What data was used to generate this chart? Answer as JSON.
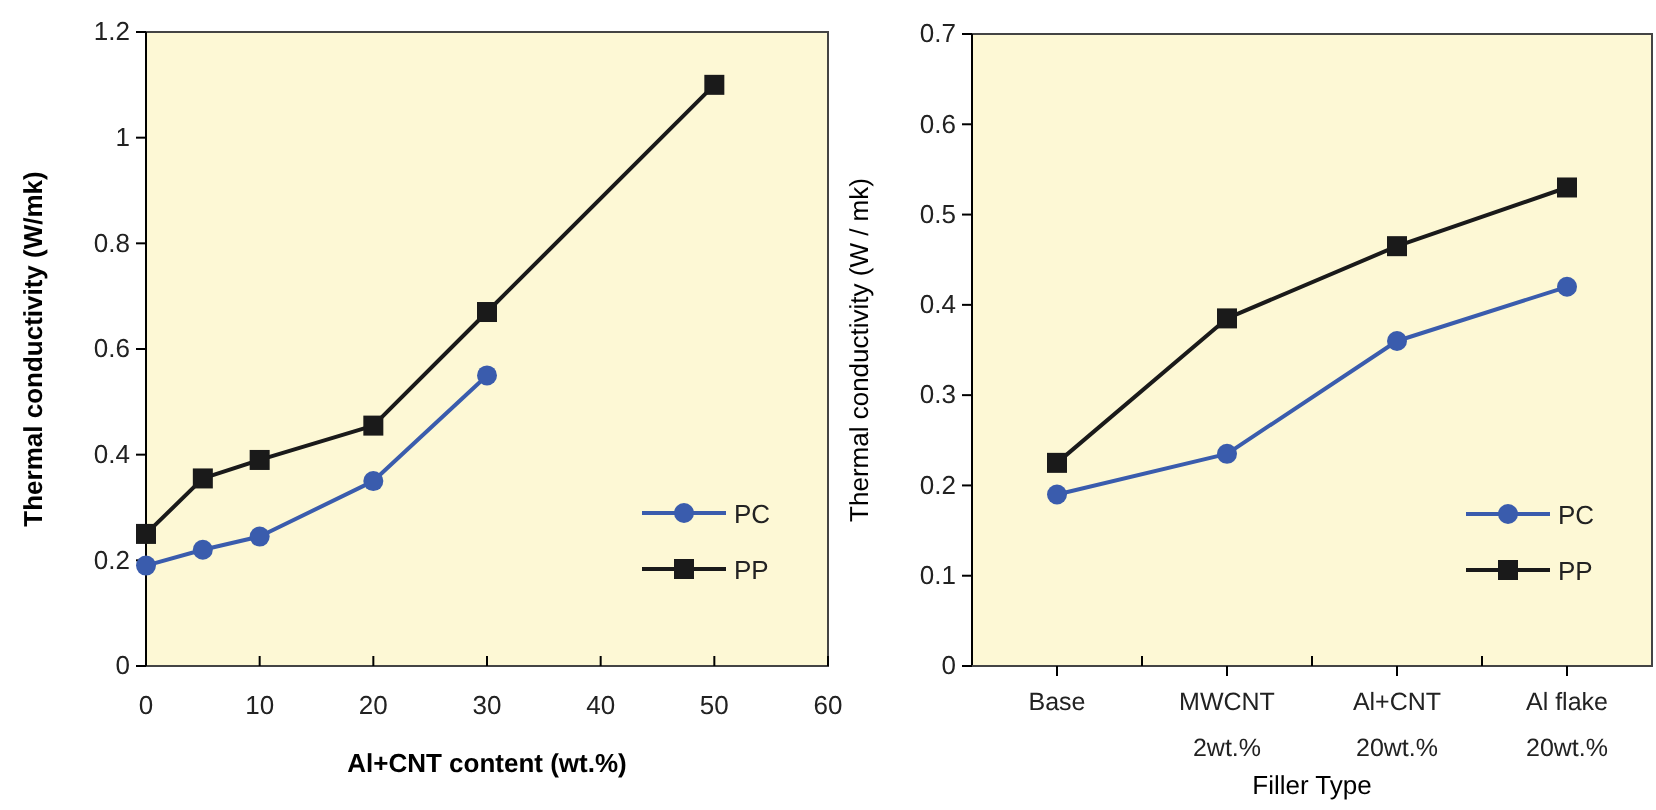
{
  "chart_data": [
    {
      "type": "line",
      "xlabel": "Al+CNT content (wt.%)",
      "ylabel": "Thermal conductivity (W/mk)",
      "xlim": [
        0,
        60
      ],
      "xticks": [
        0,
        10,
        20,
        30,
        40,
        50,
        60
      ],
      "ylim": [
        0,
        1.2
      ],
      "yticks": [
        0,
        0.2,
        0.4,
        0.6,
        0.8,
        1,
        1.2
      ],
      "grid": false,
      "legend": "right",
      "series": [
        {
          "name": "PC",
          "color": "#3a5cad",
          "marker": "circle",
          "x": [
            0,
            5,
            10,
            20,
            30
          ],
          "values": [
            0.19,
            0.22,
            0.245,
            0.35,
            0.55
          ]
        },
        {
          "name": "PP",
          "color": "#1a1a1a",
          "marker": "square",
          "x": [
            0,
            5,
            10,
            20,
            30,
            50
          ],
          "values": [
            0.25,
            0.355,
            0.39,
            0.455,
            0.67,
            1.1
          ]
        }
      ]
    },
    {
      "type": "line",
      "xlabel": "Filler Type",
      "ylabel": "Thermal conductivity (W / mk)",
      "categories": [
        "Base",
        "MWCNT\n2wt.%",
        "Al+CNT\n20wt.%",
        "Al flake\n20wt.%"
      ],
      "ylim": [
        0,
        0.7
      ],
      "yticks": [
        0,
        0.1,
        0.2,
        0.3,
        0.4,
        0.5,
        0.6,
        0.7
      ],
      "grid": false,
      "legend": "right",
      "series": [
        {
          "name": "PC",
          "color": "#3a5cad",
          "marker": "circle",
          "values": [
            0.19,
            0.235,
            0.36,
            0.42
          ]
        },
        {
          "name": "PP",
          "color": "#1a1a1a",
          "marker": "square",
          "values": [
            0.225,
            0.385,
            0.465,
            0.53
          ]
        }
      ]
    }
  ]
}
